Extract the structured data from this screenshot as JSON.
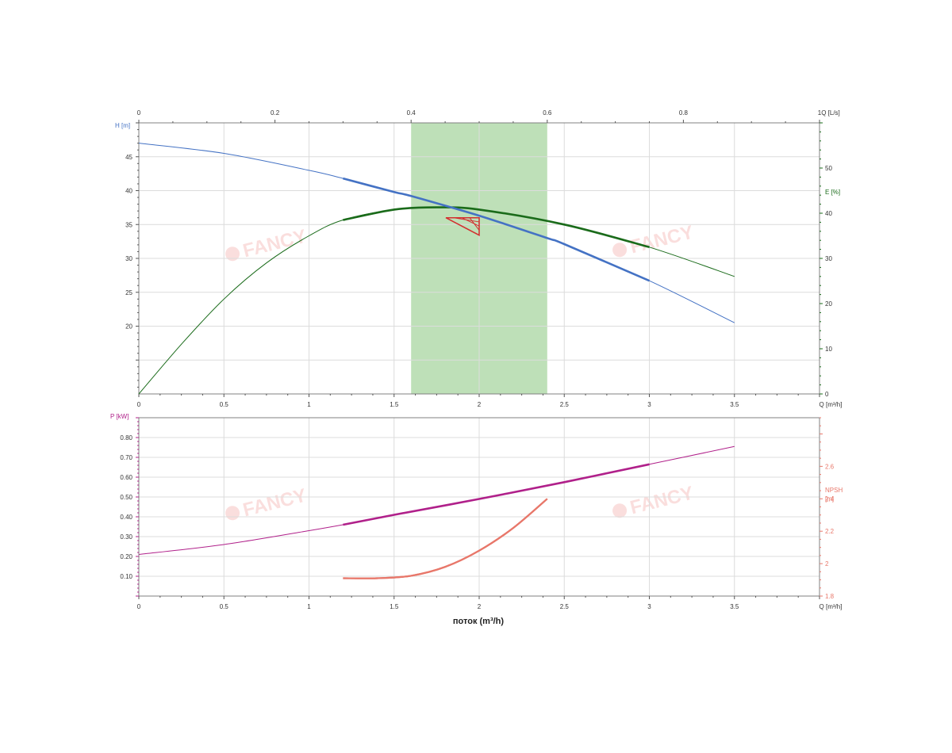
{
  "watermark": {
    "text": "FANCY"
  },
  "colors": {
    "head": "#4472c4",
    "efficiency": "#1a6b1a",
    "power": "#b0208a",
    "npsh": "#e8776a",
    "operating_band": "#a8d5a0",
    "duty_marker": "#d32f2f",
    "axis_text": "#333333"
  },
  "chart_data": [
    {
      "type": "line",
      "panel": "top",
      "top_axis": {
        "label": "Q [L/s]",
        "ticks": [
          "0",
          "0.2",
          "0.4",
          "0.6",
          "0.8",
          "1"
        ],
        "range": [
          0,
          1.0
        ]
      },
      "x_axis": {
        "label": "Q [m³/h]",
        "ticks": [
          "0",
          "0.5",
          "1",
          "1.5",
          "2",
          "2.5",
          "3",
          "3.5"
        ],
        "range": [
          0,
          4.0
        ]
      },
      "y_left": {
        "label": "H [m]",
        "ticks": [
          "20",
          "25",
          "30",
          "35",
          "40",
          "45"
        ],
        "range": [
          10,
          50
        ]
      },
      "y_right": {
        "label": "E [%]",
        "ticks": [
          "0",
          "10",
          "20",
          "30",
          "40",
          "50"
        ],
        "range": [
          0,
          60
        ]
      },
      "grid": true,
      "operating_band": {
        "x": [
          1.6,
          2.4
        ]
      },
      "duty_point": {
        "x": 2.0,
        "y": 36.0
      },
      "series": [
        {
          "axis": "left",
          "x": [
            0,
            0.5,
            1.0,
            1.2,
            1.5,
            1.6,
            2.0,
            2.4,
            2.5,
            3.0,
            3.5
          ],
          "y": [
            47.0,
            45.5,
            43.0,
            41.8,
            39.8,
            39.2,
            36.3,
            33.0,
            32.1,
            26.7,
            20.5
          ],
          "bold_range": [
            1.2,
            3.0
          ]
        },
        {
          "axis": "right",
          "x": [
            0,
            0.25,
            0.5,
            0.75,
            1.0,
            1.2,
            1.5,
            1.75,
            2.0,
            2.5,
            3.0,
            3.5
          ],
          "y": [
            0,
            11,
            21,
            29,
            35,
            38.5,
            40.8,
            41.3,
            40.8,
            37.5,
            32.5,
            26
          ],
          "bold_range": [
            1.2,
            3.0
          ]
        }
      ]
    },
    {
      "type": "line",
      "panel": "bottom",
      "x_axis": {
        "label": "Q [m³/h]",
        "ticks": [
          "0",
          "0.5",
          "1",
          "1.5",
          "2",
          "2.5",
          "3",
          "3.5"
        ],
        "range": [
          0,
          4.0
        ]
      },
      "xlabel": "поток (m³/h)",
      "y_left": {
        "label": "P [kW]",
        "ticks": [
          "0.10",
          "0.20",
          "0.30",
          "0.40",
          "0.50",
          "0.60",
          "0.70",
          "0.80"
        ],
        "range": [
          0,
          0.9
        ]
      },
      "y_right": {
        "label_lines": [
          "NPSH",
          "[m]"
        ],
        "ticks": [
          "1.8",
          "2",
          "2.2",
          "2.4",
          "2.6"
        ],
        "range": [
          1.8,
          2.9
        ]
      },
      "grid": true,
      "series": [
        {
          "axis": "left",
          "x": [
            0,
            0.5,
            1.0,
            1.2,
            1.5,
            2.0,
            2.5,
            3.0,
            3.5
          ],
          "y": [
            0.21,
            0.26,
            0.33,
            0.36,
            0.41,
            0.49,
            0.575,
            0.665,
            0.755
          ],
          "bold_range": [
            1.2,
            3.0
          ]
        },
        {
          "axis": "right",
          "x": [
            1.2,
            1.4,
            1.6,
            1.8,
            2.0,
            2.2,
            2.4
          ],
          "y": [
            1.91,
            1.91,
            1.925,
            1.98,
            2.08,
            2.22,
            2.4
          ],
          "bold_range": [
            1.2,
            2.4
          ]
        }
      ]
    }
  ]
}
